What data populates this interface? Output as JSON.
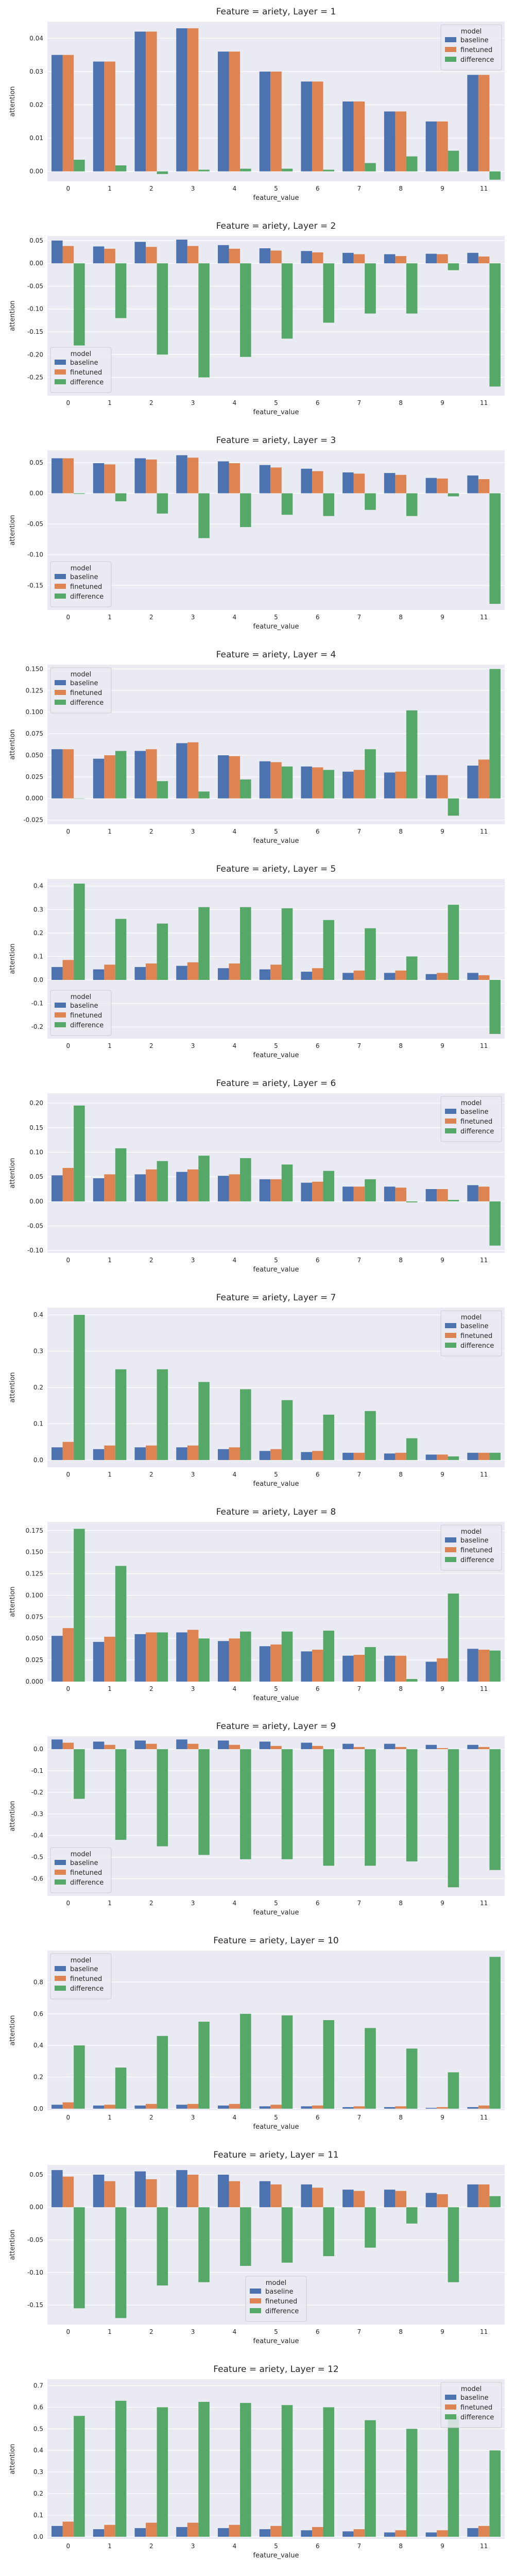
{
  "colors": {
    "baseline": "#4c72b0",
    "finetuned": "#dd8452",
    "difference": "#55a868",
    "plot_background": "#eaeaf2",
    "grid": "#ffffff"
  },
  "chart_data": [
    {
      "type": "bar",
      "title": "Feature = ariety, Layer = 1",
      "xlabel": "feature_value",
      "ylabel": "attention",
      "categories": [
        "0",
        "1",
        "2",
        "3",
        "4",
        "5",
        "6",
        "7",
        "8",
        "9",
        "11"
      ],
      "ylim": [
        -0.003,
        0.045
      ],
      "yticks": [
        0.0,
        0.01,
        0.02,
        0.03,
        0.04
      ],
      "ytick_labels": [
        "0.00",
        "0.01",
        "0.02",
        "0.03",
        "0.04"
      ],
      "legend": {
        "title": "model",
        "position": "top-right"
      },
      "series": [
        {
          "name": "baseline",
          "values": [
            0.035,
            0.033,
            0.042,
            0.043,
            0.036,
            0.03,
            0.027,
            0.021,
            0.018,
            0.015,
            0.029
          ]
        },
        {
          "name": "finetuned",
          "values": [
            0.035,
            0.033,
            0.042,
            0.043,
            0.036,
            0.03,
            0.027,
            0.021,
            0.018,
            0.015,
            0.029
          ]
        },
        {
          "name": "difference",
          "values": [
            0.0035,
            0.0018,
            -0.0008,
            0.0005,
            0.0008,
            0.0008,
            0.0005,
            0.0025,
            0.0045,
            0.0062,
            -0.0025
          ]
        }
      ]
    },
    {
      "type": "bar",
      "title": "Feature = ariety, Layer = 2",
      "xlabel": "feature_value",
      "ylabel": "attention",
      "categories": [
        "0",
        "1",
        "2",
        "3",
        "4",
        "5",
        "6",
        "7",
        "8",
        "9",
        "11"
      ],
      "ylim": [
        -0.29,
        0.06
      ],
      "yticks": [
        -0.25,
        -0.2,
        -0.15,
        -0.1,
        -0.05,
        0.0,
        0.05
      ],
      "ytick_labels": [
        "-0.25",
        "-0.20",
        "-0.15",
        "-0.10",
        "-0.05",
        "0.00",
        "0.05"
      ],
      "legend": {
        "title": "model",
        "position": "bottom-left"
      },
      "series": [
        {
          "name": "baseline",
          "values": [
            0.05,
            0.037,
            0.047,
            0.052,
            0.04,
            0.033,
            0.027,
            0.023,
            0.02,
            0.021,
            0.023
          ]
        },
        {
          "name": "finetuned",
          "values": [
            0.038,
            0.032,
            0.036,
            0.038,
            0.032,
            0.028,
            0.024,
            0.02,
            0.016,
            0.02,
            0.015
          ]
        },
        {
          "name": "difference",
          "values": [
            -0.18,
            -0.12,
            -0.2,
            -0.25,
            -0.205,
            -0.165,
            -0.13,
            -0.11,
            -0.11,
            -0.015,
            -0.27
          ]
        }
      ]
    },
    {
      "type": "bar",
      "title": "Feature = ariety, Layer = 3",
      "xlabel": "feature_value",
      "ylabel": "attention",
      "categories": [
        "0",
        "1",
        "2",
        "3",
        "4",
        "5",
        "6",
        "7",
        "8",
        "9",
        "11"
      ],
      "ylim": [
        -0.19,
        0.07
      ],
      "yticks": [
        -0.15,
        -0.1,
        -0.05,
        0.0,
        0.05
      ],
      "ytick_labels": [
        "-0.15",
        "-0.10",
        "-0.05",
        "0.00",
        "0.05"
      ],
      "legend": {
        "title": "model",
        "position": "bottom-left"
      },
      "series": [
        {
          "name": "baseline",
          "values": [
            0.057,
            0.049,
            0.057,
            0.062,
            0.052,
            0.046,
            0.04,
            0.034,
            0.033,
            0.025,
            0.029
          ]
        },
        {
          "name": "finetuned",
          "values": [
            0.057,
            0.047,
            0.055,
            0.058,
            0.049,
            0.042,
            0.036,
            0.032,
            0.03,
            0.024,
            0.023
          ]
        },
        {
          "name": "difference",
          "values": [
            -0.001,
            -0.013,
            -0.033,
            -0.073,
            -0.055,
            -0.035,
            -0.037,
            -0.027,
            -0.037,
            -0.005,
            -0.18
          ]
        }
      ]
    },
    {
      "type": "bar",
      "title": "Feature = ariety, Layer = 4",
      "xlabel": "feature_value",
      "ylabel": "attention",
      "categories": [
        "0",
        "1",
        "2",
        "3",
        "4",
        "5",
        "6",
        "7",
        "8",
        "9",
        "11"
      ],
      "ylim": [
        -0.03,
        0.155
      ],
      "yticks": [
        -0.025,
        0.0,
        0.025,
        0.05,
        0.075,
        0.1,
        0.125,
        0.15
      ],
      "ytick_labels": [
        "-0.025",
        "0.000",
        "0.025",
        "0.050",
        "0.075",
        "0.100",
        "0.125",
        "0.150"
      ],
      "legend": {
        "title": "model",
        "position": "top-left"
      },
      "series": [
        {
          "name": "baseline",
          "values": [
            0.057,
            0.046,
            0.055,
            0.064,
            0.05,
            0.043,
            0.037,
            0.031,
            0.03,
            0.027,
            0.038
          ]
        },
        {
          "name": "finetuned",
          "values": [
            0.057,
            0.05,
            0.057,
            0.065,
            0.049,
            0.042,
            0.036,
            0.033,
            0.031,
            0.027,
            0.045
          ]
        },
        {
          "name": "difference",
          "values": [
            0.0,
            0.055,
            0.02,
            0.008,
            0.022,
            0.037,
            0.033,
            0.057,
            0.102,
            -0.02,
            0.15
          ]
        }
      ]
    },
    {
      "type": "bar",
      "title": "Feature = ariety, Layer = 5",
      "xlabel": "feature_value",
      "ylabel": "attention",
      "categories": [
        "0",
        "1",
        "2",
        "3",
        "4",
        "5",
        "6",
        "7",
        "8",
        "9",
        "11"
      ],
      "ylim": [
        -0.25,
        0.43
      ],
      "yticks": [
        -0.2,
        -0.1,
        0.0,
        0.1,
        0.2,
        0.3,
        0.4
      ],
      "ytick_labels": [
        "-0.2",
        "-0.1",
        "0.0",
        "0.1",
        "0.2",
        "0.3",
        "0.4"
      ],
      "legend": {
        "title": "model",
        "position": "bottom-left"
      },
      "series": [
        {
          "name": "baseline",
          "values": [
            0.055,
            0.045,
            0.055,
            0.06,
            0.05,
            0.045,
            0.035,
            0.03,
            0.03,
            0.025,
            0.03
          ]
        },
        {
          "name": "finetuned",
          "values": [
            0.085,
            0.065,
            0.07,
            0.075,
            0.07,
            0.065,
            0.05,
            0.04,
            0.04,
            0.03,
            0.02
          ]
        },
        {
          "name": "difference",
          "values": [
            0.41,
            0.26,
            0.24,
            0.31,
            0.31,
            0.305,
            0.255,
            0.22,
            0.1,
            0.32,
            -0.23
          ]
        }
      ]
    },
    {
      "type": "bar",
      "title": "Feature = ariety, Layer = 6",
      "xlabel": "feature_value",
      "ylabel": "attention",
      "categories": [
        "0",
        "1",
        "2",
        "3",
        "4",
        "5",
        "6",
        "7",
        "8",
        "9",
        "11"
      ],
      "ylim": [
        -0.105,
        0.22
      ],
      "yticks": [
        -0.1,
        -0.05,
        0.0,
        0.05,
        0.1,
        0.15,
        0.2
      ],
      "ytick_labels": [
        "-0.10",
        "-0.05",
        "0.00",
        "0.05",
        "0.10",
        "0.15",
        "0.20"
      ],
      "legend": {
        "title": "model",
        "position": "top-right"
      },
      "series": [
        {
          "name": "baseline",
          "values": [
            0.053,
            0.047,
            0.055,
            0.06,
            0.052,
            0.045,
            0.038,
            0.03,
            0.03,
            0.025,
            0.033
          ]
        },
        {
          "name": "finetuned",
          "values": [
            0.068,
            0.055,
            0.065,
            0.065,
            0.055,
            0.045,
            0.04,
            0.03,
            0.028,
            0.025,
            0.03
          ]
        },
        {
          "name": "difference",
          "values": [
            0.195,
            0.108,
            0.082,
            0.093,
            0.088,
            0.075,
            0.062,
            0.045,
            -0.002,
            0.003,
            -0.09
          ]
        }
      ]
    },
    {
      "type": "bar",
      "title": "Feature = ariety, Layer = 7",
      "xlabel": "feature_value",
      "ylabel": "attention",
      "categories": [
        "0",
        "1",
        "2",
        "3",
        "4",
        "5",
        "6",
        "7",
        "8",
        "9",
        "11"
      ],
      "ylim": [
        -0.02,
        0.42
      ],
      "yticks": [
        0.0,
        0.1,
        0.2,
        0.3,
        0.4
      ],
      "ytick_labels": [
        "0.0",
        "0.1",
        "0.2",
        "0.3",
        "0.4"
      ],
      "legend": {
        "title": "model",
        "position": "top-right"
      },
      "series": [
        {
          "name": "baseline",
          "values": [
            0.035,
            0.03,
            0.035,
            0.035,
            0.03,
            0.025,
            0.022,
            0.02,
            0.018,
            0.015,
            0.02
          ]
        },
        {
          "name": "finetuned",
          "values": [
            0.05,
            0.04,
            0.04,
            0.04,
            0.035,
            0.03,
            0.025,
            0.02,
            0.02,
            0.015,
            0.02
          ]
        },
        {
          "name": "difference",
          "values": [
            0.4,
            0.25,
            0.25,
            0.215,
            0.195,
            0.165,
            0.125,
            0.135,
            0.06,
            0.01,
            0.02
          ]
        }
      ]
    },
    {
      "type": "bar",
      "title": "Feature = ariety, Layer = 8",
      "xlabel": "feature_value",
      "ylabel": "attention",
      "categories": [
        "0",
        "1",
        "2",
        "3",
        "4",
        "5",
        "6",
        "7",
        "8",
        "9",
        "11"
      ],
      "ylim": [
        0.0,
        0.185
      ],
      "yticks": [
        0.0,
        0.025,
        0.05,
        0.075,
        0.1,
        0.125,
        0.15,
        0.175
      ],
      "ytick_labels": [
        "0.000",
        "0.025",
        "0.050",
        "0.075",
        "0.100",
        "0.125",
        "0.150",
        "0.175"
      ],
      "legend": {
        "title": "model",
        "position": "top-right"
      },
      "series": [
        {
          "name": "baseline",
          "values": [
            0.053,
            0.046,
            0.055,
            0.057,
            0.047,
            0.041,
            0.035,
            0.03,
            0.03,
            0.023,
            0.038
          ]
        },
        {
          "name": "finetuned",
          "values": [
            0.062,
            0.052,
            0.057,
            0.06,
            0.05,
            0.043,
            0.037,
            0.031,
            0.03,
            0.027,
            0.037
          ]
        },
        {
          "name": "difference",
          "values": [
            0.177,
            0.134,
            0.057,
            0.05,
            0.058,
            0.058,
            0.059,
            0.04,
            0.003,
            0.102,
            0.036
          ]
        }
      ]
    },
    {
      "type": "bar",
      "title": "Feature = ariety, Layer = 9",
      "xlabel": "feature_value",
      "ylabel": "attention",
      "categories": [
        "0",
        "1",
        "2",
        "3",
        "4",
        "5",
        "6",
        "7",
        "8",
        "9",
        "11"
      ],
      "ylim": [
        -0.68,
        0.06
      ],
      "yticks": [
        -0.6,
        -0.5,
        -0.4,
        -0.3,
        -0.2,
        -0.1,
        0.0
      ],
      "ytick_labels": [
        "-0.6",
        "-0.5",
        "-0.4",
        "-0.3",
        "-0.2",
        "-0.1",
        "0.0"
      ],
      "legend": {
        "title": "model",
        "position": "bottom-left"
      },
      "series": [
        {
          "name": "baseline",
          "values": [
            0.045,
            0.035,
            0.04,
            0.045,
            0.04,
            0.035,
            0.03,
            0.025,
            0.025,
            0.02,
            0.02
          ]
        },
        {
          "name": "finetuned",
          "values": [
            0.03,
            0.02,
            0.025,
            0.025,
            0.02,
            0.015,
            0.015,
            0.01,
            0.01,
            0.005,
            0.01
          ]
        },
        {
          "name": "difference",
          "values": [
            -0.23,
            -0.42,
            -0.45,
            -0.49,
            -0.51,
            -0.51,
            -0.54,
            -0.54,
            -0.52,
            -0.64,
            -0.56
          ]
        }
      ]
    },
    {
      "type": "bar",
      "title": "Feature = ariety, Layer = 10",
      "xlabel": "feature_value",
      "ylabel": "attention",
      "categories": [
        "0",
        "1",
        "2",
        "3",
        "4",
        "5",
        "6",
        "7",
        "8",
        "9",
        "11"
      ],
      "ylim": [
        -0.01,
        1.0
      ],
      "yticks": [
        0.0,
        0.2,
        0.4,
        0.6,
        0.8
      ],
      "ytick_labels": [
        "0.0",
        "0.2",
        "0.4",
        "0.6",
        "0.8"
      ],
      "legend": {
        "title": "model",
        "position": "top-left"
      },
      "series": [
        {
          "name": "baseline",
          "values": [
            0.025,
            0.02,
            0.02,
            0.025,
            0.02,
            0.015,
            0.015,
            0.01,
            0.01,
            0.005,
            0.01
          ]
        },
        {
          "name": "finetuned",
          "values": [
            0.04,
            0.025,
            0.03,
            0.03,
            0.03,
            0.025,
            0.02,
            0.015,
            0.015,
            0.01,
            0.02
          ]
        },
        {
          "name": "difference",
          "values": [
            0.4,
            0.26,
            0.46,
            0.55,
            0.6,
            0.59,
            0.56,
            0.51,
            0.38,
            0.23,
            0.96
          ]
        }
      ]
    },
    {
      "type": "bar",
      "title": "Feature = ariety, Layer = 11",
      "xlabel": "feature_value",
      "ylabel": "attention",
      "categories": [
        "0",
        "1",
        "2",
        "3",
        "4",
        "5",
        "6",
        "7",
        "8",
        "9",
        "11"
      ],
      "ylim": [
        -0.18,
        0.065
      ],
      "yticks": [
        -0.15,
        -0.1,
        -0.05,
        0.0,
        0.05
      ],
      "ytick_labels": [
        "-0.15",
        "-0.10",
        "-0.05",
        "0.00",
        "0.05"
      ],
      "legend": {
        "title": "model",
        "position": "bottom-center"
      },
      "series": [
        {
          "name": "baseline",
          "values": [
            0.057,
            0.05,
            0.055,
            0.057,
            0.05,
            0.04,
            0.035,
            0.027,
            0.027,
            0.022,
            0.035
          ]
        },
        {
          "name": "finetuned",
          "values": [
            0.047,
            0.04,
            0.043,
            0.05,
            0.04,
            0.035,
            0.03,
            0.025,
            0.025,
            0.02,
            0.035
          ]
        },
        {
          "name": "difference",
          "values": [
            -0.155,
            -0.17,
            -0.12,
            -0.115,
            -0.09,
            -0.085,
            -0.075,
            -0.062,
            -0.025,
            -0.115,
            0.017
          ]
        }
      ]
    },
    {
      "type": "bar",
      "title": "Feature = ariety, Layer = 12",
      "xlabel": "feature_value",
      "ylabel": "attention",
      "categories": [
        "0",
        "1",
        "2",
        "3",
        "4",
        "5",
        "6",
        "7",
        "8",
        "9",
        "11"
      ],
      "ylim": [
        -0.01,
        0.73
      ],
      "yticks": [
        0.0,
        0.1,
        0.2,
        0.3,
        0.4,
        0.5,
        0.6,
        0.7
      ],
      "ytick_labels": [
        "0.0",
        "0.1",
        "0.2",
        "0.3",
        "0.4",
        "0.5",
        "0.6",
        "0.7"
      ],
      "legend": {
        "title": "model",
        "position": "top-right"
      },
      "series": [
        {
          "name": "baseline",
          "values": [
            0.05,
            0.035,
            0.04,
            0.045,
            0.04,
            0.035,
            0.03,
            0.025,
            0.02,
            0.02,
            0.04
          ]
        },
        {
          "name": "finetuned",
          "values": [
            0.07,
            0.055,
            0.065,
            0.065,
            0.055,
            0.05,
            0.045,
            0.035,
            0.03,
            0.03,
            0.05
          ]
        },
        {
          "name": "difference",
          "values": [
            0.56,
            0.63,
            0.6,
            0.625,
            0.62,
            0.61,
            0.6,
            0.54,
            0.5,
            0.56,
            0.4
          ]
        }
      ]
    }
  ]
}
